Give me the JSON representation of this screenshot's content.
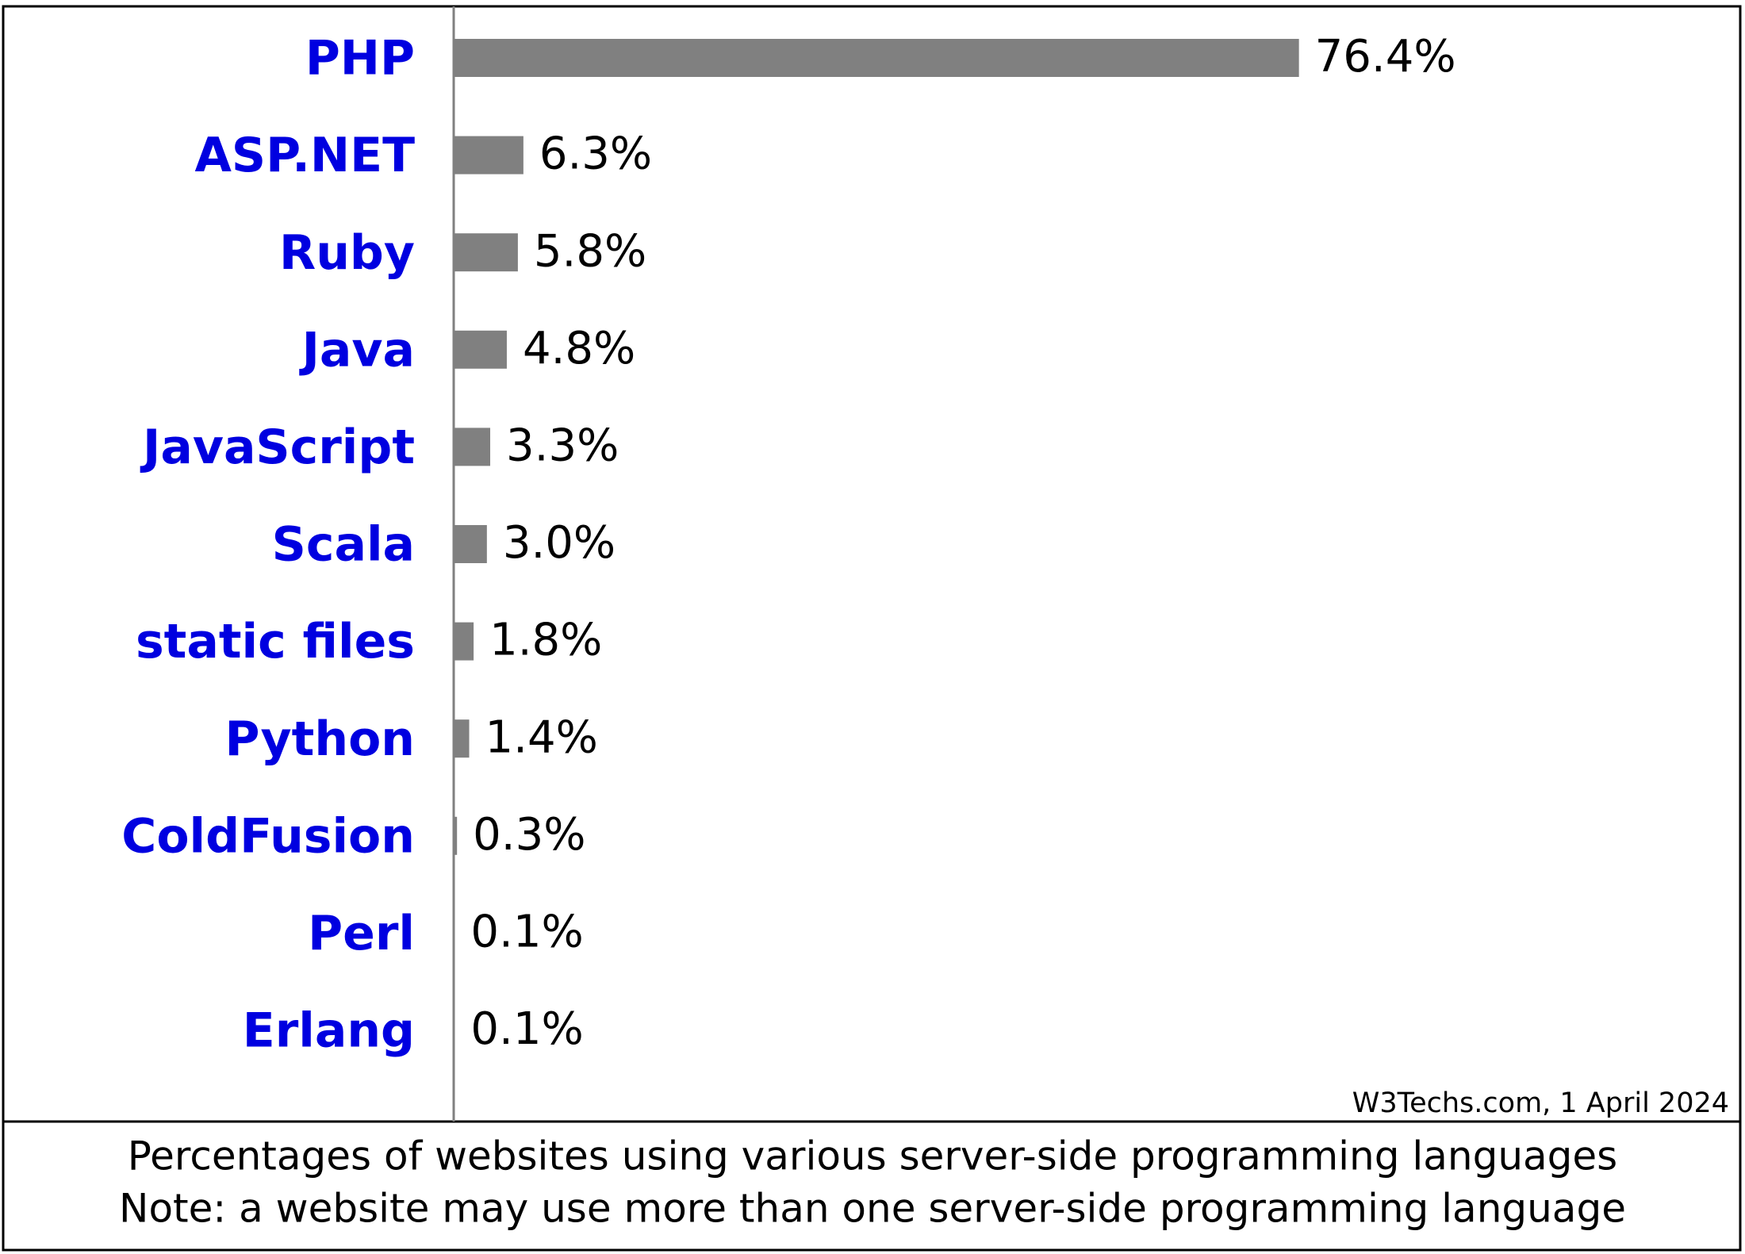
{
  "chart_data": {
    "type": "bar",
    "categories": [
      "PHP",
      "ASP.NET",
      "Ruby",
      "Java",
      "JavaScript",
      "Scala",
      "static files",
      "Python",
      "ColdFusion",
      "Perl",
      "Erlang"
    ],
    "values": [
      76.4,
      6.3,
      5.8,
      4.8,
      3.3,
      3.0,
      1.8,
      1.4,
      0.3,
      0.1,
      0.1
    ],
    "value_labels": [
      "76.4%",
      "6.3%",
      "5.8%",
      "4.8%",
      "3.3%",
      "3.0%",
      "1.8%",
      "1.4%",
      "0.3%",
      "0.1%",
      "0.1%"
    ],
    "color": "#808080",
    "source": "W3Techs.com, 1 April 2024",
    "caption": [
      "Percentages of websites using various server-side programming languages",
      "Note: a website may use more than one server-side programming language"
    ]
  }
}
